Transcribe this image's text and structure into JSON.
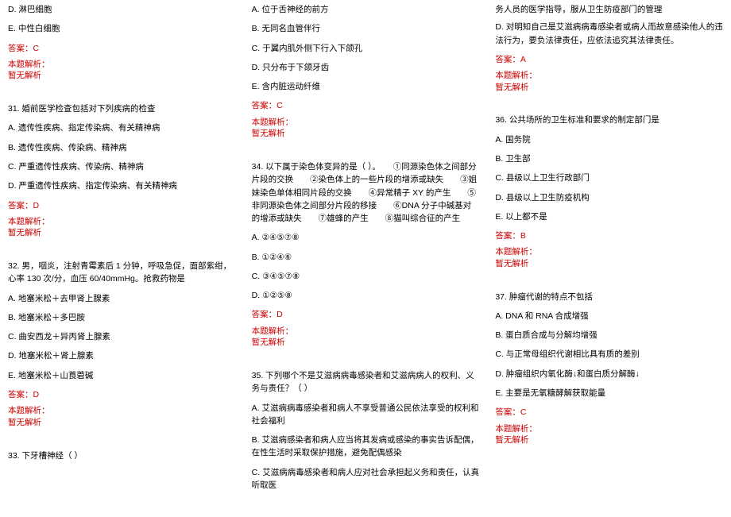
{
  "text_color": "#000000",
  "red_color": "#cc0000",
  "background_color": "#ffffff",
  "font_size": 10.5,
  "col1": {
    "opt_d_30": "D. 淋巴细胞",
    "opt_e_30": "E. 中性白细胞",
    "ans_30": "答案：C",
    "analysis_label_30": "本题解析：",
    "analysis_none_30": "暂无解析",
    "q31": "31. 婚前医学检查包括对下列疾病的检查",
    "q31_a": "A. 遗传性疾病、指定传染病、有关精神病",
    "q31_b": "B. 遗传性疾病、传染病、精神病",
    "q31_c": "C. 严重遗传性疾病、传染病、精神病",
    "q31_d": "D. 严重遗传性疾病、指定传染病、有关精神病",
    "ans_31": "答案：D",
    "analysis_label_31": "本题解析：",
    "analysis_none_31": "暂无解析",
    "q32": "32. 男，咽炎，注射青霉素后 1 分钟，呼吸急促，面部紫绀，心率 130 次/分，血压 60/40mmHg。抢救药物是",
    "q32_a": "A. 地塞米松＋去甲肾上腺素",
    "q32_b": "B. 地塞米松＋多巴胺",
    "q32_c": "C. 曲安西龙＋异丙肾上腺素",
    "q32_d": "D. 地塞米松＋肾上腺素",
    "q32_e": "E. 地塞米松＋山莨菪碱",
    "ans_32": "答案：D",
    "analysis_label_32": "本题解析：",
    "analysis_none_32": "暂无解析",
    "q33": "33. 下牙槽神经（ ）"
  },
  "col2": {
    "q33_a": "A. 位于舌神经的前方",
    "q33_b": "B. 无同名血管伴行",
    "q33_c": "C. 于翼内肌外侧下行入下颌孔",
    "q33_d": "D. 只分布于下颌牙齿",
    "q33_e": "E. 含内脏运动纤维",
    "ans_33": "答案：C",
    "analysis_label_33": "本题解析：",
    "analysis_none_33": "暂无解析",
    "q34": "34. 以下属于染色体变异的是（ ）。　　①同源染色体之间部分片段的交换　　②染色体上的一些片段的增添或缺失　　③姐妹染色单体相同片段的交换　　④异常精子 XY 的产生　　⑤非同源染色体之间部分片段的移接　　⑥DNA 分子中碱基对的增添或缺失　　⑦雄蜂的产生　　⑧猫叫综合征的产生",
    "q34_a": "A. ②④⑤⑦⑧",
    "q34_b": "B. ①②④⑥",
    "q34_c": "C. ③④⑤⑦⑧",
    "q34_d": "D. ①②⑤⑧",
    "ans_34": "答案：D",
    "analysis_label_34": "本题解析：",
    "analysis_none_34": "暂无解析",
    "q35": "35. 下列哪个不是艾滋病病毒感染者和艾滋病病人的权利、义务与责任？（ ）",
    "q35_a": "A. 艾滋病病毒感染者和病人不享受普通公民依法享受的权利和社会福利",
    "q35_b": "B. 艾滋病感染者和病人应当将其发病或感染的事实告诉配偶，在性生活时采取保护措施，避免配偶感染",
    "q35_c": "C. 艾滋病病毒感染者和病人应对社会承担起义务和责任，认真听取医"
  },
  "col3": {
    "q35_c_cont": "务人员的医学指导，服从卫生防疫部门的管理",
    "q35_d": "D. 对明知自己是艾滋病病毒感染者或病人而故意感染他人的违法行为，要负法律责任，应依法追究其法律责任。",
    "ans_35": "答案：A",
    "analysis_label_35": "本题解析：",
    "analysis_none_35": "暂无解析",
    "q36": "36. 公共场所的卫生标准和要求的制定部门是",
    "q36_a": "A. 国务院",
    "q36_b": "B. 卫生部",
    "q36_c": "C. 县级以上卫生行政部门",
    "q36_d": "D. 县级以上卫生防疫机构",
    "q36_e": "E. 以上都不是",
    "ans_36": "答案：B",
    "analysis_label_36": "本题解析：",
    "analysis_none_36": "暂无解析",
    "q37": "37. 肿瘤代谢的特点不包括",
    "q37_a": "A. DNA 和 RNA 合成增强",
    "q37_b": "B. 蛋白质合成与分解均增强",
    "q37_c": "C. 与正常母组织代谢相比具有质的差别",
    "q37_d": "D. 肿瘤组织内氧化酶↓和蛋白质分解酶↓",
    "q37_e": "E. 主要是无氧糖酵解获取能量",
    "ans_37": "答案：C",
    "analysis_label_37": "本题解析：",
    "analysis_none_37": "暂无解析"
  }
}
